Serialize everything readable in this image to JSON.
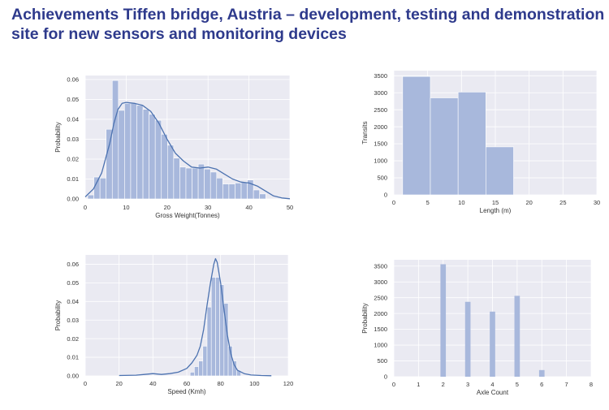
{
  "title": {
    "line1": "Achievements Tiffen bridge, Austria – development, testing and demonstration",
    "line2": "site for new sensors and monitoring devices"
  },
  "colors": {
    "plot_bg": "#eaeaf2",
    "bar": "#a8b8dc",
    "kde": "#4c72b0",
    "grid": "#ffffff",
    "title": "#2e3a8c"
  },
  "chart_data": [
    {
      "id": "gross-weight",
      "type": "bar",
      "xlabel": "Gross Weight(Tonnes)",
      "ylabel": "Probability",
      "xlim": [
        0,
        50
      ],
      "ylim": [
        0,
        0.062
      ],
      "xticks": [
        0,
        10,
        20,
        30,
        40,
        50
      ],
      "yticks": [
        0.0,
        0.01,
        0.02,
        0.03,
        0.04,
        0.05,
        0.06
      ],
      "ytick_labels": [
        "0.00",
        "0.01",
        "0.02",
        "0.03",
        "0.04",
        "0.05",
        "0.06"
      ],
      "bin_edges": [
        0.6,
        2.1,
        3.6,
        5.1,
        6.6,
        8.1,
        9.6,
        11.1,
        12.6,
        14.1,
        15.6,
        17.1,
        18.6,
        20.1,
        21.6,
        23.1,
        24.6,
        26.1,
        27.6,
        29.1,
        30.6,
        32.1,
        33.6,
        35.1,
        36.6,
        38.1,
        39.6,
        41.1,
        42.6,
        44.1
      ],
      "values": [
        0.002,
        0.011,
        0.0105,
        0.035,
        0.0595,
        0.0445,
        0.048,
        0.048,
        0.047,
        0.045,
        0.0425,
        0.0395,
        0.0325,
        0.027,
        0.0205,
        0.016,
        0.0155,
        0.0155,
        0.0175,
        0.015,
        0.0135,
        0.0105,
        0.0075,
        0.0075,
        0.008,
        0.0085,
        0.0095,
        0.0045,
        0.0025
      ],
      "kde_x": [
        0,
        2,
        4,
        6,
        7,
        8,
        9,
        10,
        12,
        14,
        16,
        18,
        20,
        22,
        24,
        26,
        28,
        30,
        32,
        34,
        36,
        38,
        40,
        42,
        44,
        46,
        48,
        50
      ],
      "kde_y": [
        0.001,
        0.005,
        0.013,
        0.028,
        0.038,
        0.045,
        0.048,
        0.0485,
        0.048,
        0.047,
        0.044,
        0.038,
        0.03,
        0.023,
        0.019,
        0.016,
        0.0155,
        0.016,
        0.015,
        0.0125,
        0.01,
        0.0085,
        0.008,
        0.0065,
        0.004,
        0.0015,
        0.0005,
        0.0001
      ]
    },
    {
      "id": "length",
      "type": "bar",
      "xlabel": "Length (m)",
      "ylabel": "Transits",
      "xlim": [
        0,
        30
      ],
      "ylim": [
        0,
        3650
      ],
      "xticks": [
        0,
        5,
        10,
        15,
        20,
        25,
        30
      ],
      "yticks": [
        0,
        500,
        1000,
        1500,
        2000,
        2500,
        3000,
        3500
      ],
      "ytick_labels": [
        "0",
        "500",
        "1000",
        "1500",
        "2000",
        "2500",
        "3000",
        "3500"
      ],
      "bin_edges": [
        1.3,
        5.4,
        9.5,
        13.6,
        17.7
      ],
      "values": [
        3480,
        2850,
        3020,
        1410
      ]
    },
    {
      "id": "speed",
      "type": "bar",
      "xlabel": "Speed (Kmh)",
      "ylabel": "Probability",
      "xlim": [
        0,
        120
      ],
      "ylim": [
        0,
        0.065
      ],
      "xticks": [
        0,
        20,
        40,
        60,
        80,
        100,
        120
      ],
      "yticks": [
        0.0,
        0.01,
        0.02,
        0.03,
        0.04,
        0.05,
        0.06
      ],
      "ytick_labels": [
        "0.00",
        "0.01",
        "0.02",
        "0.03",
        "0.04",
        "0.05",
        "0.06"
      ],
      "bin_edges": [
        62,
        64.5,
        67,
        69.5,
        72,
        74.5,
        77,
        79.5,
        82,
        84.5,
        87,
        89.5,
        92
      ],
      "values": [
        0.002,
        0.005,
        0.008,
        0.016,
        0.037,
        0.053,
        0.053,
        0.049,
        0.039,
        0.016,
        0.008,
        0.003
      ],
      "kde_x": [
        20,
        30,
        35,
        40,
        45,
        50,
        55,
        60,
        63,
        66,
        68,
        70,
        72,
        74,
        76,
        77,
        78,
        80,
        82,
        84,
        86,
        88,
        90,
        94,
        98,
        104,
        110
      ],
      "kde_y": [
        0.0002,
        0.0004,
        0.0008,
        0.0012,
        0.0008,
        0.0012,
        0.002,
        0.004,
        0.007,
        0.011,
        0.016,
        0.025,
        0.038,
        0.05,
        0.06,
        0.063,
        0.061,
        0.05,
        0.036,
        0.022,
        0.012,
        0.006,
        0.003,
        0.0012,
        0.0005,
        0.0002,
        0.0001
      ]
    },
    {
      "id": "axle-count",
      "type": "bar",
      "xlabel": "Axle Count",
      "ylabel": "Probability",
      "xlim": [
        0,
        8
      ],
      "ylim": [
        0,
        3700
      ],
      "xticks": [
        0,
        1,
        2,
        3,
        4,
        5,
        6,
        7,
        8
      ],
      "yticks": [
        0,
        500,
        1000,
        1500,
        2000,
        2500,
        3000,
        3500
      ],
      "ytick_labels": [
        "0",
        "500",
        "1000",
        "1500",
        "2000",
        "2500",
        "3000",
        "3500"
      ],
      "categories": [
        2,
        3,
        4,
        5,
        6
      ],
      "values": [
        3560,
        2370,
        2060,
        2560,
        210
      ]
    }
  ]
}
